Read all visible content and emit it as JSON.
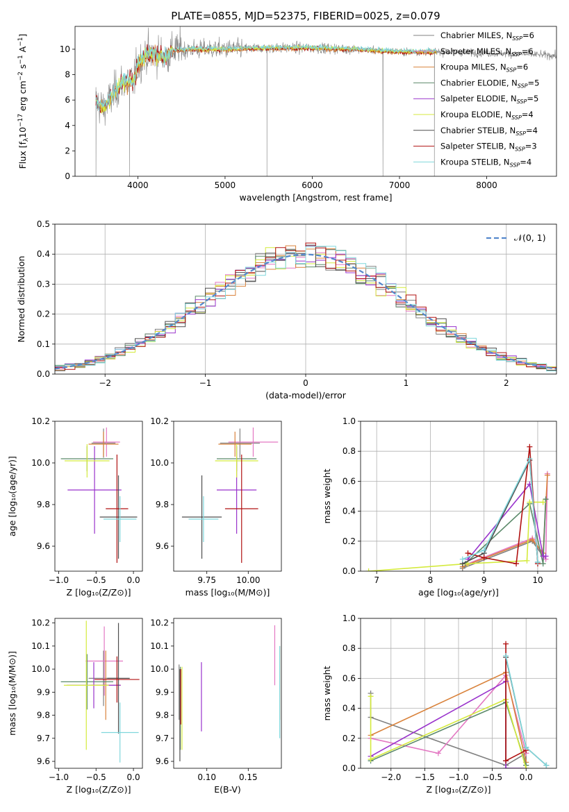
{
  "page": {
    "title": "PLATE=0855, MJD=52375, FIBERID=0025, z=0.079"
  },
  "colors": {
    "Chabrier MILES": "#808080",
    "Salpeter MILES": "#e377c2",
    "Kroupa MILES": "#d9823b",
    "Chabrier ELODIE": "#5b8a6a",
    "Salpeter ELODIE": "#9932cc",
    "Kroupa ELODIE": "#d4ea3c",
    "Chabrier STELIB": "#4d4d4d",
    "Salpeter STELIB": "#b01010",
    "Kroupa STELIB": "#7fd7dc",
    "Gaussian": "#5588cc"
  },
  "chart_data": [
    {
      "id": "spectrum",
      "type": "line",
      "xlabel": "wavelength [Angstrom, rest frame]",
      "ylabel_main": "Flux [f",
      "ylabel_sub": "λ",
      "ylabel_rest": "10",
      "ylabel_exp": "−17",
      "ylabel_tail": " erg cm",
      "ylabel_exp2": "−2",
      "ylabel_tail2": " s",
      "ylabel_exp3": "−1",
      "ylabel_tail3": " A",
      "ylabel_exp4": "−1",
      "ylabel_end": "]",
      "xlim": [
        3280,
        8800
      ],
      "ylim": [
        0,
        11.8
      ],
      "xticks": [
        4000,
        5000,
        6000,
        7000,
        8000
      ],
      "yticks": [
        0,
        2,
        4,
        6,
        8,
        10
      ],
      "legend": [
        {
          "name": "Chabrier MILES",
          "n": "6"
        },
        {
          "name": "Salpeter MILES",
          "n": "6"
        },
        {
          "name": "Kroupa MILES",
          "n": "6"
        },
        {
          "name": "Chabrier ELODIE",
          "n": "5"
        },
        {
          "name": "Salpeter ELODIE",
          "n": "5"
        },
        {
          "name": "Kroupa ELODIE",
          "n": "4"
        },
        {
          "name": "Chabrier STELIB",
          "n": "4"
        },
        {
          "name": "Salpeter STELIB",
          "n": "3"
        },
        {
          "name": "Kroupa STELIB",
          "n": "4"
        }
      ],
      "legend_label_prefix": "N",
      "legend_label_sub": "SSP",
      "legend_placement": "upper right",
      "continuum": [
        [
          3520,
          6.0
        ],
        [
          3600,
          5.3
        ],
        [
          3700,
          6.2
        ],
        [
          3800,
          7.3
        ],
        [
          3900,
          7.6
        ],
        [
          3950,
          7.4
        ],
        [
          4000,
          8.8
        ],
        [
          4100,
          9.6
        ],
        [
          4200,
          9.6
        ],
        [
          4300,
          9.4
        ],
        [
          4400,
          9.9
        ],
        [
          4600,
          10.0
        ],
        [
          5000,
          10.0
        ],
        [
          5500,
          10.1
        ],
        [
          6000,
          10.1
        ],
        [
          6500,
          10.0
        ],
        [
          7000,
          9.8
        ],
        [
          7500,
          9.8
        ],
        [
          8000,
          9.7
        ],
        [
          8500,
          9.6
        ],
        [
          8800,
          9.5
        ]
      ],
      "model_range": [
        3520,
        7420
      ],
      "data_range": [
        3520,
        8800
      ],
      "dips": [
        [
          3520,
          0
        ],
        [
          3905,
          0
        ],
        [
          5480,
          0
        ],
        [
          6810,
          0
        ],
        [
          7400,
          0
        ]
      ]
    },
    {
      "id": "residuals",
      "type": "histogram",
      "xlabel": "(data-model)/error",
      "ylabel": "Normed distribution",
      "xlim": [
        -2.5,
        2.5
      ],
      "ylim": [
        0,
        0.5
      ],
      "xticks": [
        -2,
        -1,
        0,
        1,
        2
      ],
      "xtick_labels": [
        "−2",
        "−1",
        "0",
        "1",
        "2"
      ],
      "yticks": [
        0.0,
        0.1,
        0.2,
        0.3,
        0.4,
        0.5
      ],
      "ytick_labels": [
        "0.0",
        "0.1",
        "0.2",
        "0.3",
        "0.4",
        "0.5"
      ],
      "bin_width": 0.1,
      "grid": true,
      "legend_label": "𝒩(0, 1)",
      "legend_placement": "upper right",
      "gaussian": {
        "mean": 0,
        "sigma": 1
      }
    },
    {
      "id": "z-age",
      "type": "errorbar",
      "xlabel": "Z [log₁₀(Z/Z⊙)]",
      "ylabel": "age  [log₁₀(age/yr)]",
      "xlim": [
        -1.05,
        0.12
      ],
      "ylim": [
        9.48,
        10.2
      ],
      "xticks": [
        -1.0,
        -0.5,
        0.0
      ],
      "xtick_labels": [
        "−1.0",
        "−0.5",
        "0.0"
      ],
      "yticks": [
        9.6,
        9.8,
        10.0,
        10.2
      ],
      "ytick_labels": [
        "9.6",
        "9.8",
        "10.0",
        "10.2"
      ],
      "points": [
        {
          "model": "Chabrier MILES",
          "x": -0.4,
          "xerr": 0.16,
          "y": 10.095,
          "yerr": 0.07
        },
        {
          "model": "Salpeter MILES",
          "x": -0.36,
          "xerr": 0.18,
          "y": 10.1,
          "yerr": 0.07
        },
        {
          "model": "Kroupa MILES",
          "x": -0.4,
          "xerr": 0.2,
          "y": 10.09,
          "yerr": 0.06
        },
        {
          "model": "Chabrier ELODIE",
          "x": -0.62,
          "xerr": 0.35,
          "y": 10.02,
          "yerr": 0.06
        },
        {
          "model": "Salpeter ELODIE",
          "x": -0.52,
          "xerr": 0.36,
          "y": 9.87,
          "yerr": 0.21
        },
        {
          "model": "Kroupa ELODIE",
          "x": -0.62,
          "xerr": 0.3,
          "y": 10.01,
          "yerr": 0.08
        },
        {
          "model": "Chabrier STELIB",
          "x": -0.2,
          "xerr": 0.25,
          "y": 9.74,
          "yerr": 0.2
        },
        {
          "model": "Salpeter STELIB",
          "x": -0.22,
          "xerr": 0.15,
          "y": 9.78,
          "yerr": 0.26
        },
        {
          "model": "Kroupa STELIB",
          "x": -0.18,
          "xerr": 0.22,
          "y": 9.73,
          "yerr": 0.11
        }
      ]
    },
    {
      "id": "mass-age",
      "type": "errorbar",
      "xlabel": "mass [log₁₀(M/M⊙)]",
      "ylabel": "",
      "xlim": [
        9.55,
        10.2
      ],
      "ylim": [
        9.48,
        10.2
      ],
      "xticks": [
        9.75,
        10.0
      ],
      "xtick_labels": [
        "9.75",
        "10.00"
      ],
      "yticks": [
        9.6,
        9.8,
        10.0,
        10.2
      ],
      "ytick_labels": [
        "9.6",
        "9.8",
        "10.0",
        "10.2"
      ],
      "points": [
        {
          "model": "Chabrier MILES",
          "x": 9.95,
          "xerr": 0.12,
          "y": 10.095,
          "yerr": 0.07
        },
        {
          "model": "Salpeter MILES",
          "x": 10.03,
          "xerr": 0.15,
          "y": 10.1,
          "yerr": 0.07
        },
        {
          "model": "Kroupa MILES",
          "x": 9.92,
          "xerr": 0.1,
          "y": 10.09,
          "yerr": 0.06
        },
        {
          "model": "Chabrier ELODIE",
          "x": 9.93,
          "xerr": 0.12,
          "y": 10.02,
          "yerr": 0.06
        },
        {
          "model": "Salpeter ELODIE",
          "x": 9.93,
          "xerr": 0.12,
          "y": 9.87,
          "yerr": 0.21
        },
        {
          "model": "Kroupa ELODIE",
          "x": 9.93,
          "xerr": 0.13,
          "y": 10.01,
          "yerr": 0.08
        },
        {
          "model": "Chabrier STELIB",
          "x": 9.72,
          "xerr": 0.12,
          "y": 9.74,
          "yerr": 0.2
        },
        {
          "model": "Salpeter STELIB",
          "x": 9.96,
          "xerr": 0.1,
          "y": 9.78,
          "yerr": 0.26
        },
        {
          "model": "Kroupa STELIB",
          "x": 9.73,
          "xerr": 0.09,
          "y": 9.73,
          "yerr": 0.11
        }
      ]
    },
    {
      "id": "age-weight",
      "type": "line",
      "xlabel": "age  [log₁₀(age/yr)]",
      "ylabel": "mass weight",
      "xlim": [
        6.7,
        10.35
      ],
      "ylim": [
        0,
        1.0
      ],
      "xticks": [
        7,
        8,
        9,
        10
      ],
      "xtick_labels": [
        "7",
        "8",
        "9",
        "10"
      ],
      "yticks": [
        0,
        0.2,
        0.4,
        0.6,
        0.8,
        1.0
      ],
      "ytick_labels": [
        "0.0",
        "0.2",
        "0.4",
        "0.6",
        "0.8",
        "1.0"
      ],
      "grid": true,
      "series": [
        {
          "model": "Chabrier MILES",
          "x": [
            8.6,
            9.9,
            10.1,
            10.15
          ],
          "y": [
            0.02,
            0.2,
            0.1,
            0.48
          ]
        },
        {
          "model": "Salpeter MILES",
          "x": [
            8.7,
            9.9,
            10.15,
            10.18
          ],
          "y": [
            0.05,
            0.22,
            0.08,
            0.65
          ]
        },
        {
          "model": "Kroupa MILES",
          "x": [
            8.6,
            9.9,
            10.1,
            10.18
          ],
          "y": [
            0.03,
            0.21,
            0.12,
            0.64
          ]
        },
        {
          "model": "Chabrier ELODIE",
          "x": [
            8.65,
            9.85,
            10.1,
            10.15
          ],
          "y": [
            0.05,
            0.45,
            0.05,
            0.48
          ]
        },
        {
          "model": "Salpeter ELODIE",
          "x": [
            8.7,
            9.85,
            10.1,
            10.15
          ],
          "y": [
            0.08,
            0.58,
            0.1,
            0.1
          ]
        },
        {
          "model": "Kroupa ELODIE",
          "x": [
            6.85,
            8.7,
            9.8,
            9.85,
            10.1
          ],
          "y": [
            0.0,
            0.05,
            0.07,
            0.46,
            0.46
          ]
        },
        {
          "model": "Chabrier STELIB",
          "x": [
            8.6,
            9.0,
            9.85,
            10.0
          ],
          "y": [
            0.05,
            0.12,
            0.74,
            0.06
          ]
        },
        {
          "model": "Salpeter STELIB",
          "x": [
            8.7,
            9.0,
            9.6,
            9.85,
            10.0
          ],
          "y": [
            0.12,
            0.09,
            0.05,
            0.83,
            0.05
          ]
        },
        {
          "model": "Kroupa STELIB",
          "x": [
            8.6,
            9.0,
            9.85,
            10.0
          ],
          "y": [
            0.08,
            0.14,
            0.75,
            0.06
          ]
        }
      ]
    },
    {
      "id": "z-mass",
      "type": "errorbar",
      "xlabel": "Z [log₁₀(Z/Z⊙)]",
      "ylabel": "mass [log₁₀(M/M⊙)]",
      "xlim": [
        -1.05,
        0.12
      ],
      "ylim": [
        9.57,
        10.22
      ],
      "xticks": [
        -1.0,
        -0.5,
        0.0
      ],
      "xtick_labels": [
        "−1.0",
        "−0.5",
        "0.0"
      ],
      "yticks": [
        9.6,
        9.7,
        9.8,
        9.9,
        10.0,
        10.1,
        10.2
      ],
      "ytick_labels": [
        "9.6",
        "9.7",
        "9.8",
        "9.9",
        "10.0",
        "10.1",
        "10.2"
      ],
      "points": [
        {
          "model": "Chabrier MILES",
          "x": -0.4,
          "xerr": 0.2,
          "y": 9.96,
          "yerr": 0.12
        },
        {
          "model": "Salpeter MILES",
          "x": -0.39,
          "xerr": 0.25,
          "y": 10.035,
          "yerr": 0.15
        },
        {
          "model": "Kroupa MILES",
          "x": -0.37,
          "xerr": 0.2,
          "y": 9.93,
          "yerr": 0.15
        },
        {
          "model": "Chabrier ELODIE",
          "x": -0.62,
          "xerr": 0.35,
          "y": 9.945,
          "yerr": 0.12
        },
        {
          "model": "Salpeter ELODIE",
          "x": -0.53,
          "xerr": 0.36,
          "y": 9.93,
          "yerr": 0.1
        },
        {
          "model": "Kroupa ELODIE",
          "x": -0.63,
          "xerr": 0.3,
          "y": 9.93,
          "yerr": 0.28
        },
        {
          "model": "Chabrier STELIB",
          "x": -0.2,
          "xerr": 0.15,
          "y": 9.96,
          "yerr": 0.24
        },
        {
          "model": "Salpeter STELIB",
          "x": -0.22,
          "xerr": 0.3,
          "y": 9.955,
          "yerr": 0.1
        },
        {
          "model": "Kroupa STELIB",
          "x": -0.18,
          "xerr": 0.25,
          "y": 9.725,
          "yerr": 0.13
        }
      ]
    },
    {
      "id": "ebv-mass",
      "type": "errorbar",
      "xlabel": "E(B-V)",
      "ylabel": "",
      "xlim": [
        0.06,
        0.19
      ],
      "ylim": [
        9.57,
        10.22
      ],
      "xticks": [
        0.1,
        0.15
      ],
      "xtick_labels": [
        "0.10",
        "0.15"
      ],
      "yticks": [
        9.6,
        9.7,
        9.8,
        9.9,
        10.0,
        10.1,
        10.2
      ],
      "ytick_labels": [
        "9.6",
        "9.7",
        "9.8",
        "9.9",
        "10.0",
        "10.1",
        "10.2"
      ],
      "points": [
        {
          "model": "Chabrier MILES",
          "x": 0.0665,
          "xerr": 0,
          "y": 9.9,
          "yerr": 0.12
        },
        {
          "model": "Salpeter MILES",
          "x": 0.182,
          "xerr": 0,
          "y": 10.06,
          "yerr": 0.13
        },
        {
          "model": "Kroupa MILES",
          "x": 0.188,
          "xerr": 0,
          "y": 9.94,
          "yerr": 0.16
        },
        {
          "model": "Chabrier ELODIE",
          "x": 0.068,
          "xerr": 0,
          "y": 9.83,
          "yerr": 0.18
        },
        {
          "model": "Salpeter ELODIE",
          "x": 0.0935,
          "xerr": 0,
          "y": 9.88,
          "yerr": 0.15
        },
        {
          "model": "Kroupa ELODIE",
          "x": 0.07,
          "xerr": 0,
          "y": 9.83,
          "yerr": 0.18
        },
        {
          "model": "Chabrier STELIB",
          "x": 0.0675,
          "xerr": 0,
          "y": 9.8,
          "yerr": 0.2
        },
        {
          "model": "Salpeter STELIB",
          "x": 0.0685,
          "xerr": 0,
          "y": 9.88,
          "yerr": 0.12
        },
        {
          "model": "Kroupa STELIB",
          "x": 0.188,
          "xerr": 0,
          "y": 9.9,
          "yerr": 0.2
        }
      ]
    },
    {
      "id": "z-weight",
      "type": "line",
      "xlabel": "Z [log₁₀(Z/Z⊙)]",
      "ylabel": "mass weight",
      "xlim": [
        -2.45,
        0.45
      ],
      "ylim": [
        0,
        1.0
      ],
      "xticks": [
        -2.0,
        -1.5,
        -1.0,
        -0.5,
        0.0
      ],
      "xtick_labels": [
        "−2.0",
        "−1.5",
        "−1.0",
        "−0.5",
        "0.0"
      ],
      "yticks": [
        0,
        0.2,
        0.4,
        0.6,
        0.8,
        1.0
      ],
      "ytick_labels": [
        "0.0",
        "0.2",
        "0.4",
        "0.6",
        "0.8",
        "1.0"
      ],
      "grid": true,
      "series": [
        {
          "model": "Chabrier MILES",
          "x": [
            -2.3,
            -2.3,
            -0.3,
            0.0,
            0.0
          ],
          "y": [
            0.5,
            0.34,
            0.02,
            0.1,
            0.02
          ]
        },
        {
          "model": "Salpeter MILES",
          "x": [
            -2.3,
            -1.3,
            -0.3,
            0.0
          ],
          "y": [
            0.2,
            0.1,
            0.62,
            0.1
          ]
        },
        {
          "model": "Kroupa MILES",
          "x": [
            -2.3,
            -0.3,
            0.0
          ],
          "y": [
            0.22,
            0.64,
            0.04
          ]
        },
        {
          "model": "Chabrier ELODIE",
          "x": [
            -2.3,
            -0.3,
            0.0
          ],
          "y": [
            0.05,
            0.44,
            0.02
          ]
        },
        {
          "model": "Salpeter ELODIE",
          "x": [
            -2.3,
            -0.3,
            -0.3,
            0.0
          ],
          "y": [
            0.08,
            0.58,
            0.0,
            0.0
          ]
        },
        {
          "model": "Kroupa ELODIE",
          "x": [
            -2.3,
            -2.3,
            -0.3,
            0.0
          ],
          "y": [
            0.48,
            0.06,
            0.46,
            0.0
          ]
        },
        {
          "model": "Chabrier STELIB",
          "x": [
            -0.3,
            -0.3,
            0.0,
            0.3
          ],
          "y": [
            0.05,
            0.74,
            0.14,
            0.02
          ]
        },
        {
          "model": "Salpeter STELIB",
          "x": [
            -0.3,
            -0.3,
            0.0
          ],
          "y": [
            0.83,
            0.05,
            0.12
          ]
        },
        {
          "model": "Kroupa STELIB",
          "x": [
            -0.3,
            0.0,
            0.3
          ],
          "y": [
            0.75,
            0.14,
            0.02
          ]
        }
      ]
    }
  ]
}
